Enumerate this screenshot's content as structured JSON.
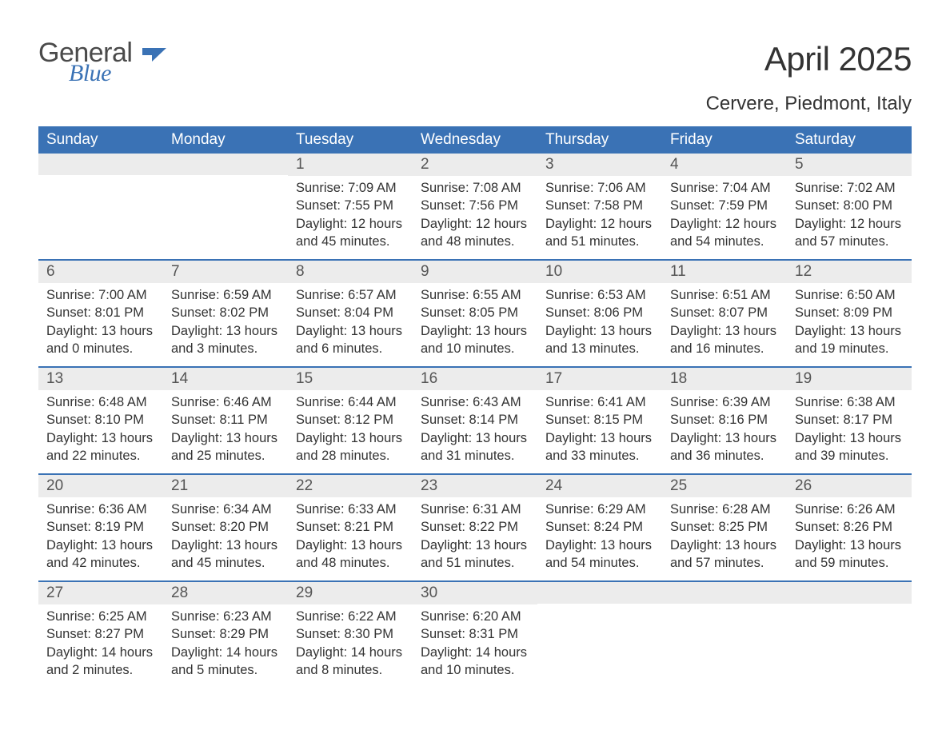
{
  "logo": {
    "general": "General",
    "blue": "Blue",
    "icon_color": "#3a72b5"
  },
  "title": "April 2025",
  "location": "Cervere, Piedmont, Italy",
  "colors": {
    "header_bg": "#3a72b5",
    "header_text": "#ffffff",
    "daynum_bg": "#ececec",
    "week_border": "#3a72b5",
    "body_text": "#333333",
    "logo_gray": "#4a4a4a",
    "logo_blue": "#3a72b5",
    "background": "#ffffff"
  },
  "typography": {
    "title_fontsize": 42,
    "location_fontsize": 24,
    "weekday_fontsize": 19,
    "daynum_fontsize": 19,
    "content_fontsize": 16.5,
    "logo_fontsize": 34
  },
  "weekdays": [
    "Sunday",
    "Monday",
    "Tuesday",
    "Wednesday",
    "Thursday",
    "Friday",
    "Saturday"
  ],
  "weeks": [
    [
      {
        "empty": true
      },
      {
        "empty": true
      },
      {
        "day": "1",
        "sunrise": "Sunrise: 7:09 AM",
        "sunset": "Sunset: 7:55 PM",
        "daylight1": "Daylight: 12 hours",
        "daylight2": "and 45 minutes."
      },
      {
        "day": "2",
        "sunrise": "Sunrise: 7:08 AM",
        "sunset": "Sunset: 7:56 PM",
        "daylight1": "Daylight: 12 hours",
        "daylight2": "and 48 minutes."
      },
      {
        "day": "3",
        "sunrise": "Sunrise: 7:06 AM",
        "sunset": "Sunset: 7:58 PM",
        "daylight1": "Daylight: 12 hours",
        "daylight2": "and 51 minutes."
      },
      {
        "day": "4",
        "sunrise": "Sunrise: 7:04 AM",
        "sunset": "Sunset: 7:59 PM",
        "daylight1": "Daylight: 12 hours",
        "daylight2": "and 54 minutes."
      },
      {
        "day": "5",
        "sunrise": "Sunrise: 7:02 AM",
        "sunset": "Sunset: 8:00 PM",
        "daylight1": "Daylight: 12 hours",
        "daylight2": "and 57 minutes."
      }
    ],
    [
      {
        "day": "6",
        "sunrise": "Sunrise: 7:00 AM",
        "sunset": "Sunset: 8:01 PM",
        "daylight1": "Daylight: 13 hours",
        "daylight2": "and 0 minutes."
      },
      {
        "day": "7",
        "sunrise": "Sunrise: 6:59 AM",
        "sunset": "Sunset: 8:02 PM",
        "daylight1": "Daylight: 13 hours",
        "daylight2": "and 3 minutes."
      },
      {
        "day": "8",
        "sunrise": "Sunrise: 6:57 AM",
        "sunset": "Sunset: 8:04 PM",
        "daylight1": "Daylight: 13 hours",
        "daylight2": "and 6 minutes."
      },
      {
        "day": "9",
        "sunrise": "Sunrise: 6:55 AM",
        "sunset": "Sunset: 8:05 PM",
        "daylight1": "Daylight: 13 hours",
        "daylight2": "and 10 minutes."
      },
      {
        "day": "10",
        "sunrise": "Sunrise: 6:53 AM",
        "sunset": "Sunset: 8:06 PM",
        "daylight1": "Daylight: 13 hours",
        "daylight2": "and 13 minutes."
      },
      {
        "day": "11",
        "sunrise": "Sunrise: 6:51 AM",
        "sunset": "Sunset: 8:07 PM",
        "daylight1": "Daylight: 13 hours",
        "daylight2": "and 16 minutes."
      },
      {
        "day": "12",
        "sunrise": "Sunrise: 6:50 AM",
        "sunset": "Sunset: 8:09 PM",
        "daylight1": "Daylight: 13 hours",
        "daylight2": "and 19 minutes."
      }
    ],
    [
      {
        "day": "13",
        "sunrise": "Sunrise: 6:48 AM",
        "sunset": "Sunset: 8:10 PM",
        "daylight1": "Daylight: 13 hours",
        "daylight2": "and 22 minutes."
      },
      {
        "day": "14",
        "sunrise": "Sunrise: 6:46 AM",
        "sunset": "Sunset: 8:11 PM",
        "daylight1": "Daylight: 13 hours",
        "daylight2": "and 25 minutes."
      },
      {
        "day": "15",
        "sunrise": "Sunrise: 6:44 AM",
        "sunset": "Sunset: 8:12 PM",
        "daylight1": "Daylight: 13 hours",
        "daylight2": "and 28 minutes."
      },
      {
        "day": "16",
        "sunrise": "Sunrise: 6:43 AM",
        "sunset": "Sunset: 8:14 PM",
        "daylight1": "Daylight: 13 hours",
        "daylight2": "and 31 minutes."
      },
      {
        "day": "17",
        "sunrise": "Sunrise: 6:41 AM",
        "sunset": "Sunset: 8:15 PM",
        "daylight1": "Daylight: 13 hours",
        "daylight2": "and 33 minutes."
      },
      {
        "day": "18",
        "sunrise": "Sunrise: 6:39 AM",
        "sunset": "Sunset: 8:16 PM",
        "daylight1": "Daylight: 13 hours",
        "daylight2": "and 36 minutes."
      },
      {
        "day": "19",
        "sunrise": "Sunrise: 6:38 AM",
        "sunset": "Sunset: 8:17 PM",
        "daylight1": "Daylight: 13 hours",
        "daylight2": "and 39 minutes."
      }
    ],
    [
      {
        "day": "20",
        "sunrise": "Sunrise: 6:36 AM",
        "sunset": "Sunset: 8:19 PM",
        "daylight1": "Daylight: 13 hours",
        "daylight2": "and 42 minutes."
      },
      {
        "day": "21",
        "sunrise": "Sunrise: 6:34 AM",
        "sunset": "Sunset: 8:20 PM",
        "daylight1": "Daylight: 13 hours",
        "daylight2": "and 45 minutes."
      },
      {
        "day": "22",
        "sunrise": "Sunrise: 6:33 AM",
        "sunset": "Sunset: 8:21 PM",
        "daylight1": "Daylight: 13 hours",
        "daylight2": "and 48 minutes."
      },
      {
        "day": "23",
        "sunrise": "Sunrise: 6:31 AM",
        "sunset": "Sunset: 8:22 PM",
        "daylight1": "Daylight: 13 hours",
        "daylight2": "and 51 minutes."
      },
      {
        "day": "24",
        "sunrise": "Sunrise: 6:29 AM",
        "sunset": "Sunset: 8:24 PM",
        "daylight1": "Daylight: 13 hours",
        "daylight2": "and 54 minutes."
      },
      {
        "day": "25",
        "sunrise": "Sunrise: 6:28 AM",
        "sunset": "Sunset: 8:25 PM",
        "daylight1": "Daylight: 13 hours",
        "daylight2": "and 57 minutes."
      },
      {
        "day": "26",
        "sunrise": "Sunrise: 6:26 AM",
        "sunset": "Sunset: 8:26 PM",
        "daylight1": "Daylight: 13 hours",
        "daylight2": "and 59 minutes."
      }
    ],
    [
      {
        "day": "27",
        "sunrise": "Sunrise: 6:25 AM",
        "sunset": "Sunset: 8:27 PM",
        "daylight1": "Daylight: 14 hours",
        "daylight2": "and 2 minutes."
      },
      {
        "day": "28",
        "sunrise": "Sunrise: 6:23 AM",
        "sunset": "Sunset: 8:29 PM",
        "daylight1": "Daylight: 14 hours",
        "daylight2": "and 5 minutes."
      },
      {
        "day": "29",
        "sunrise": "Sunrise: 6:22 AM",
        "sunset": "Sunset: 8:30 PM",
        "daylight1": "Daylight: 14 hours",
        "daylight2": "and 8 minutes."
      },
      {
        "day": "30",
        "sunrise": "Sunrise: 6:20 AM",
        "sunset": "Sunset: 8:31 PM",
        "daylight1": "Daylight: 14 hours",
        "daylight2": "and 10 minutes."
      },
      {
        "empty": true
      },
      {
        "empty": true
      },
      {
        "empty": true
      }
    ]
  ]
}
